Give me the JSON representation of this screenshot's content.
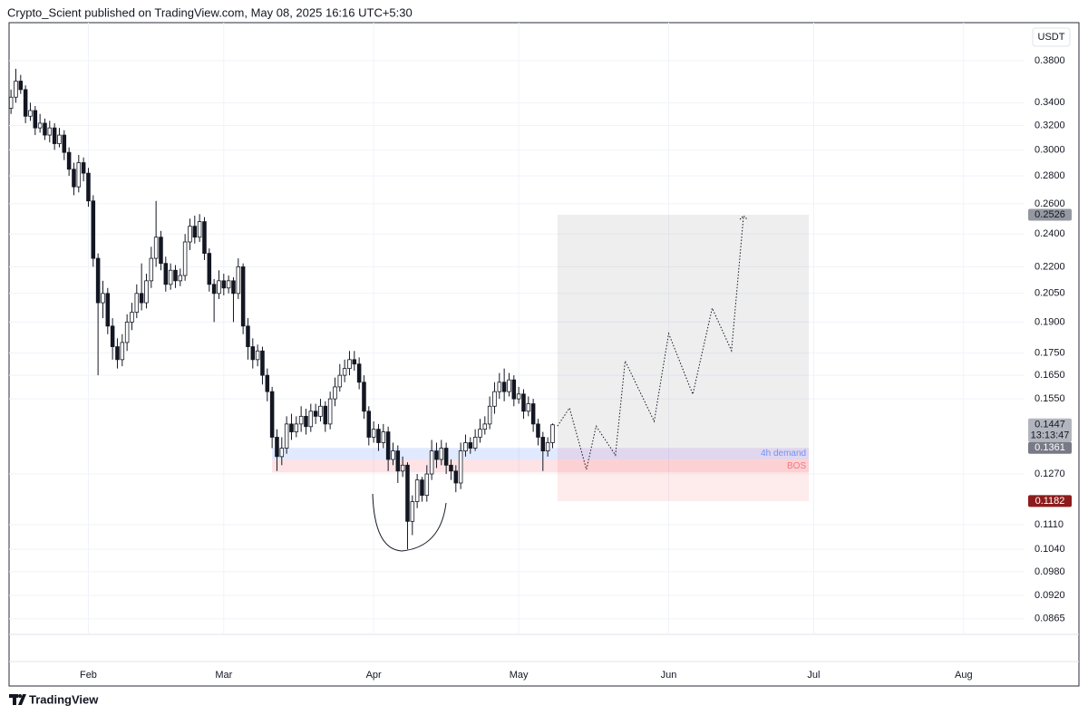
{
  "header": "Crypto_Scient published on TradingView.com, May 08, 2025 16:16 UTC+5:30",
  "footer_logo": "TradingView",
  "chart_data": {
    "type": "candlestick",
    "currency": "USDT",
    "log_scale": true,
    "grid": true,
    "up_color": "#ffffff",
    "down_color": "#131722",
    "xlim": [
      -0.4,
      209.6
    ],
    "xticks": [
      {
        "value": 16,
        "label": "Feb"
      },
      {
        "value": 44,
        "label": "Mar"
      },
      {
        "value": 75,
        "label": "Apr"
      },
      {
        "value": 105,
        "label": "May"
      },
      {
        "value": 136,
        "label": "Jun"
      },
      {
        "value": 166,
        "label": "Jul"
      },
      {
        "value": 197,
        "label": "Aug"
      }
    ],
    "ylim": [
      0.083,
      0.4204
    ],
    "yticks": [
      {
        "value": 0.38,
        "label": "0.3800"
      },
      {
        "value": 0.34,
        "label": "0.3400"
      },
      {
        "value": 0.32,
        "label": "0.3200"
      },
      {
        "value": 0.3,
        "label": "0.3000"
      },
      {
        "value": 0.28,
        "label": "0.2800"
      },
      {
        "value": 0.26,
        "label": "0.2600"
      },
      {
        "value": 0.24,
        "label": "0.2400"
      },
      {
        "value": 0.22,
        "label": "0.2200"
      },
      {
        "value": 0.205,
        "label": "0.2050"
      },
      {
        "value": 0.19,
        "label": "0.1900"
      },
      {
        "value": 0.175,
        "label": "0.1750"
      },
      {
        "value": 0.165,
        "label": "0.1650"
      },
      {
        "value": 0.155,
        "label": "0.1550"
      },
      {
        "value": 0.127,
        "label": "0.1270"
      },
      {
        "value": 0.111,
        "label": "0.1110"
      },
      {
        "value": 0.104,
        "label": "0.1040"
      },
      {
        "value": 0.098,
        "label": "0.0980"
      },
      {
        "value": 0.092,
        "label": "0.0920"
      },
      0.0865
    ],
    "open": [
      0.335,
      0.345,
      0.36,
      0.352,
      0.328,
      0.333,
      0.318,
      0.322,
      0.312,
      0.318,
      0.305,
      0.312,
      0.298,
      0.285,
      0.272,
      0.29,
      0.282,
      0.262,
      0.225,
      0.2,
      0.205,
      0.188,
      0.178,
      0.172,
      0.18,
      0.19,
      0.195,
      0.205,
      0.2,
      0.212,
      0.225,
      0.238,
      0.222,
      0.21,
      0.218,
      0.212,
      0.215,
      0.235,
      0.245,
      0.238,
      0.248,
      0.228,
      0.21,
      0.205,
      0.212,
      0.208,
      0.212,
      0.205,
      0.22,
      0.188,
      0.178,
      0.172,
      0.176,
      0.165,
      0.158,
      0.14,
      0.133,
      0.136,
      0.145,
      0.142,
      0.145,
      0.148,
      0.144,
      0.15,
      0.148,
      0.152,
      0.145,
      0.155,
      0.16,
      0.165,
      0.168,
      0.172,
      0.17,
      0.162,
      0.15,
      0.14,
      0.143,
      0.138,
      0.142,
      0.132,
      0.135,
      0.128,
      0.13,
      0.112,
      0.118,
      0.125,
      0.12,
      0.127,
      0.135,
      0.132,
      0.136,
      0.13,
      0.128,
      0.124,
      0.135,
      0.138,
      0.136,
      0.14,
      0.143,
      0.145,
      0.152,
      0.158,
      0.162,
      0.158,
      0.163,
      0.155,
      0.157,
      0.15,
      0.153,
      0.145,
      0.14,
      0.135,
      0.138
    ],
    "high": [
      0.352,
      0.372,
      0.366,
      0.356,
      0.34,
      0.337,
      0.33,
      0.326,
      0.324,
      0.322,
      0.318,
      0.316,
      0.302,
      0.29,
      0.296,
      0.294,
      0.286,
      0.266,
      0.228,
      0.212,
      0.208,
      0.192,
      0.182,
      0.184,
      0.194,
      0.2,
      0.21,
      0.222,
      0.216,
      0.232,
      0.262,
      0.242,
      0.226,
      0.222,
      0.221,
      0.219,
      0.24,
      0.25,
      0.252,
      0.253,
      0.251,
      0.231,
      0.213,
      0.218,
      0.216,
      0.215,
      0.214,
      0.225,
      0.222,
      0.192,
      0.182,
      0.179,
      0.178,
      0.168,
      0.16,
      0.143,
      0.14,
      0.148,
      0.149,
      0.148,
      0.152,
      0.151,
      0.153,
      0.153,
      0.155,
      0.154,
      0.158,
      0.164,
      0.17,
      0.172,
      0.176,
      0.176,
      0.173,
      0.165,
      0.152,
      0.146,
      0.145,
      0.145,
      0.144,
      0.138,
      0.137,
      0.133,
      0.131,
      0.12,
      0.127,
      0.126,
      0.13,
      0.139,
      0.138,
      0.139,
      0.138,
      0.132,
      0.13,
      0.138,
      0.141,
      0.14,
      0.143,
      0.147,
      0.148,
      0.156,
      0.162,
      0.166,
      0.168,
      0.166,
      0.165,
      0.16,
      0.159,
      0.156,
      0.155,
      0.147,
      0.142,
      0.14,
      0.1452
    ],
    "low": [
      0.33,
      0.34,
      0.348,
      0.322,
      0.324,
      0.312,
      0.314,
      0.308,
      0.306,
      0.3,
      0.302,
      0.292,
      0.28,
      0.266,
      0.268,
      0.276,
      0.258,
      0.22,
      0.165,
      0.192,
      0.184,
      0.172,
      0.168,
      0.169,
      0.176,
      0.186,
      0.192,
      0.196,
      0.197,
      0.208,
      0.22,
      0.218,
      0.206,
      0.207,
      0.208,
      0.209,
      0.212,
      0.23,
      0.234,
      0.235,
      0.224,
      0.206,
      0.19,
      0.202,
      0.204,
      0.205,
      0.19,
      0.202,
      0.184,
      0.172,
      0.168,
      0.169,
      0.161,
      0.154,
      0.136,
      0.128,
      0.13,
      0.134,
      0.139,
      0.14,
      0.142,
      0.141,
      0.142,
      0.145,
      0.146,
      0.142,
      0.143,
      0.152,
      0.158,
      0.162,
      0.165,
      0.167,
      0.159,
      0.147,
      0.137,
      0.138,
      0.135,
      0.136,
      0.128,
      0.13,
      0.124,
      0.126,
      0.104,
      0.108,
      0.116,
      0.118,
      0.118,
      0.125,
      0.129,
      0.13,
      0.127,
      0.125,
      0.121,
      0.122,
      0.133,
      0.134,
      0.135,
      0.138,
      0.141,
      0.143,
      0.149,
      0.155,
      0.154,
      0.156,
      0.152,
      0.153,
      0.147,
      0.148,
      0.142,
      0.137,
      0.128,
      0.133,
      0.136
    ],
    "close": [
      0.345,
      0.36,
      0.352,
      0.328,
      0.333,
      0.318,
      0.322,
      0.312,
      0.318,
      0.305,
      0.312,
      0.298,
      0.285,
      0.272,
      0.29,
      0.282,
      0.262,
      0.225,
      0.2,
      0.205,
      0.188,
      0.178,
      0.172,
      0.18,
      0.19,
      0.195,
      0.205,
      0.2,
      0.212,
      0.225,
      0.238,
      0.222,
      0.21,
      0.218,
      0.212,
      0.215,
      0.235,
      0.245,
      0.238,
      0.248,
      0.228,
      0.21,
      0.205,
      0.212,
      0.208,
      0.212,
      0.205,
      0.22,
      0.188,
      0.178,
      0.172,
      0.176,
      0.165,
      0.158,
      0.14,
      0.133,
      0.136,
      0.145,
      0.142,
      0.145,
      0.148,
      0.144,
      0.15,
      0.148,
      0.152,
      0.145,
      0.155,
      0.16,
      0.165,
      0.168,
      0.172,
      0.17,
      0.162,
      0.15,
      0.14,
      0.143,
      0.138,
      0.142,
      0.132,
      0.135,
      0.128,
      0.13,
      0.112,
      0.118,
      0.125,
      0.12,
      0.127,
      0.135,
      0.132,
      0.136,
      0.13,
      0.128,
      0.124,
      0.135,
      0.138,
      0.136,
      0.14,
      0.143,
      0.145,
      0.152,
      0.158,
      0.162,
      0.158,
      0.163,
      0.155,
      0.157,
      0.15,
      0.153,
      0.145,
      0.14,
      0.135,
      0.138,
      0.1447
    ],
    "countdown": "13:13:47",
    "zones": [
      {
        "label": "4h demand",
        "top": 0.1361,
        "bottom": 0.132,
        "start": 54,
        "end": 165,
        "color": "#2962ff"
      },
      {
        "label": "BOS",
        "top": 0.132,
        "bottom": 0.1275,
        "start": 54,
        "end": 165,
        "color": "#f23645"
      }
    ],
    "position": {
      "start": 113,
      "end": 165,
      "target": 0.2526,
      "entry": 0.1361,
      "stop": 0.1182
    },
    "projection": {
      "x": [
        113,
        115.5,
        119,
        121,
        125,
        127,
        133,
        136,
        141,
        145,
        149,
        151.5
      ],
      "y": [
        0.1442,
        0.1513,
        0.1285,
        0.1442,
        0.1335,
        0.1714,
        0.146,
        0.1843,
        0.1569,
        0.1972,
        0.1761,
        0.2519
      ]
    }
  }
}
